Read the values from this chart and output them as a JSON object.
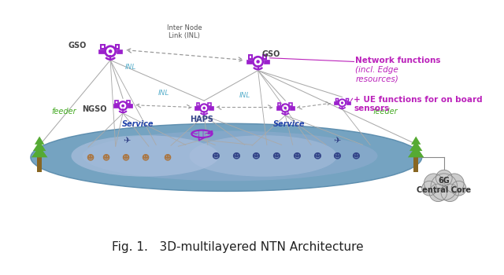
{
  "title": "Fig. 1.   3D-multilayered NTN Architecture",
  "title_fontsize": 11,
  "bg_color": "#ffffff",
  "sat_color": "#9b20cc",
  "link_color": "#aaaaaa",
  "inl_color": "#5ab0cc",
  "service_color": "#2244aa",
  "feeder_color": "#44aa22",
  "ann_color": "#bb22bb",
  "network_label_bold": "Network functions ",
  "network_label_italic": "(incl. Edge\nresources)",
  "ue_label": "+ UE functions for on board\nsensors",
  "core_label": "6G\nCentral Core",
  "gso_label": "GSO",
  "ngso_label": "NGSO",
  "haps_label": "HAPS",
  "feeder_label": "feeder",
  "service_label": "Service",
  "inl_label": "INL",
  "inter_node_label": "Inter Node\nLink (INL)",
  "ellipse_outer_color": "#6699bb",
  "ellipse_mid_color": "#88bbcc",
  "ellipse_inner_color": "#aaccdd",
  "tree_color": "#55aa33",
  "icon_left_color": "#aa7744",
  "icon_right_color": "#334488"
}
